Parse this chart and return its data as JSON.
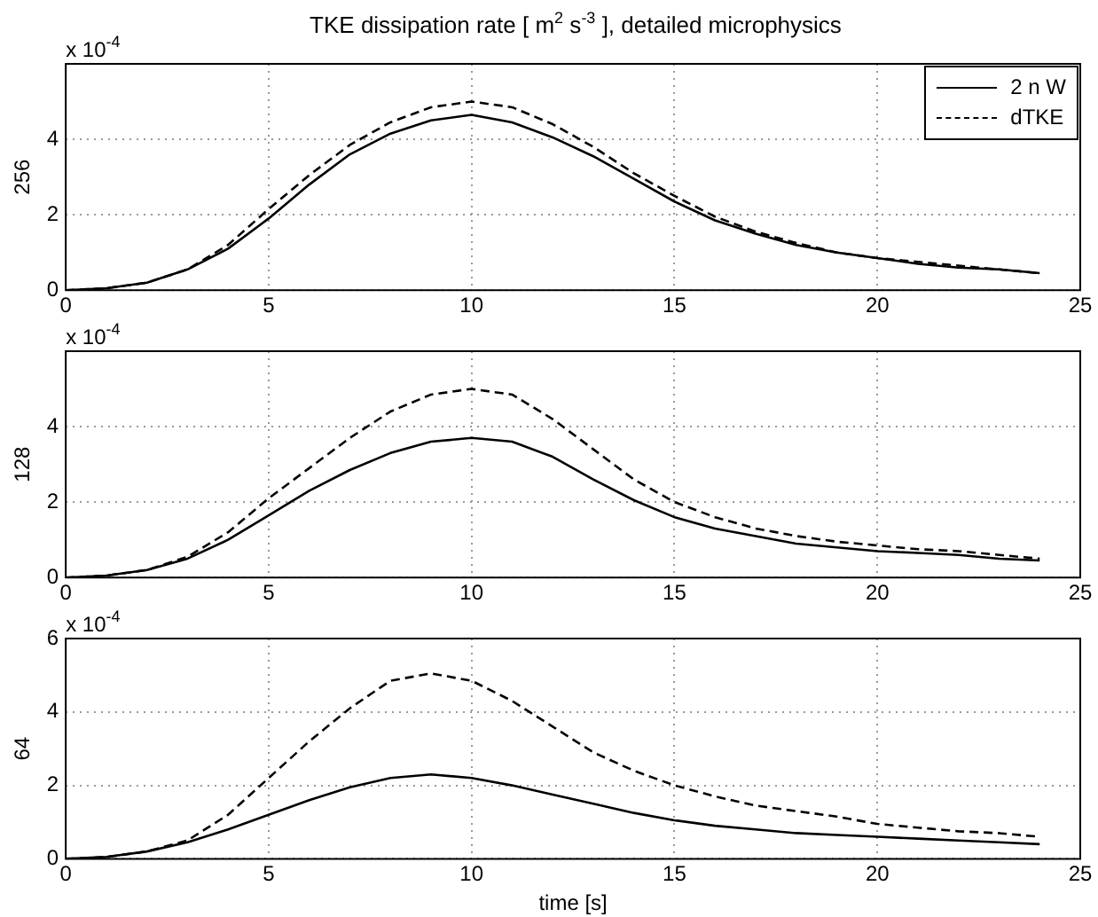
{
  "chart_data": [
    {
      "type": "line",
      "title": "TKE dissipation rate [ m$^{2}$ s$^{-3}$ ], detailed microphysics",
      "ylabel": "256",
      "annotations": [
        "x 10$^{-4}$"
      ],
      "legend": "top right",
      "grid": true,
      "x": [
        0,
        1,
        2,
        3,
        4,
        5,
        6,
        7,
        8,
        9,
        10,
        11,
        12,
        13,
        14,
        15,
        16,
        17,
        18,
        19,
        20,
        21,
        22,
        23,
        24
      ],
      "xlim": [
        0,
        25
      ],
      "xticks": [
        0,
        5,
        10,
        15,
        20,
        25
      ],
      "ylim": [
        0,
        6
      ],
      "yticks": [
        0,
        2,
        4
      ],
      "series": [
        {
          "name": "2 n W",
          "color": "#000000",
          "line_style": "solid",
          "values": [
            0,
            0.05,
            0.2,
            0.55,
            1.1,
            1.9,
            2.8,
            3.6,
            4.15,
            4.5,
            4.65,
            4.45,
            4.05,
            3.55,
            2.95,
            2.35,
            1.85,
            1.5,
            1.2,
            1,
            0.85,
            0.7,
            0.6,
            0.55,
            0.45
          ]
        },
        {
          "name": "dTKE",
          "color": "#000000",
          "line_style": "dashed",
          "values": [
            0,
            0.05,
            0.2,
            0.55,
            1.2,
            2.15,
            3.05,
            3.85,
            4.45,
            4.85,
            5,
            4.85,
            4.4,
            3.8,
            3.1,
            2.5,
            1.95,
            1.55,
            1.25,
            1,
            0.85,
            0.75,
            0.65,
            0.55,
            0.45
          ]
        }
      ]
    },
    {
      "type": "line",
      "ylabel": "128",
      "annotations": [
        "x 10$^{-4}$"
      ],
      "grid": true,
      "x": [
        0,
        1,
        2,
        3,
        4,
        5,
        6,
        7,
        8,
        9,
        10,
        11,
        12,
        13,
        14,
        15,
        16,
        17,
        18,
        19,
        20,
        21,
        22,
        23,
        24
      ],
      "xlim": [
        0,
        25
      ],
      "xticks": [
        0,
        5,
        10,
        15,
        20,
        25
      ],
      "ylim": [
        0,
        6
      ],
      "yticks": [
        0,
        2,
        4
      ],
      "series": [
        {
          "color": "#000000",
          "line_style": "solid",
          "values": [
            0,
            0.05,
            0.2,
            0.5,
            1,
            1.65,
            2.3,
            2.85,
            3.3,
            3.6,
            3.7,
            3.6,
            3.2,
            2.6,
            2.05,
            1.6,
            1.3,
            1.1,
            0.9,
            0.8,
            0.7,
            0.65,
            0.6,
            0.5,
            0.45
          ]
        },
        {
          "color": "#000000",
          "line_style": "dashed",
          "values": [
            0,
            0.05,
            0.2,
            0.55,
            1.2,
            2.1,
            2.9,
            3.7,
            4.4,
            4.85,
            5,
            4.85,
            4.2,
            3.4,
            2.6,
            2,
            1.6,
            1.3,
            1.1,
            0.95,
            0.85,
            0.75,
            0.7,
            0.6,
            0.5
          ]
        }
      ]
    },
    {
      "type": "line",
      "ylabel": "64",
      "xlabel": "time [s]",
      "annotations": [
        "x 10$^{-4}$"
      ],
      "grid": true,
      "x": [
        0,
        1,
        2,
        3,
        4,
        5,
        6,
        7,
        8,
        9,
        10,
        11,
        12,
        13,
        14,
        15,
        16,
        17,
        18,
        19,
        20,
        21,
        22,
        23,
        24
      ],
      "xlim": [
        0,
        25
      ],
      "xticks": [
        0,
        5,
        10,
        15,
        20,
        25
      ],
      "ylim": [
        0,
        6
      ],
      "yticks": [
        0,
        2,
        4,
        6
      ],
      "series": [
        {
          "color": "#000000",
          "line_style": "solid",
          "values": [
            0,
            0.05,
            0.2,
            0.45,
            0.8,
            1.2,
            1.6,
            1.95,
            2.2,
            2.3,
            2.2,
            2,
            1.75,
            1.5,
            1.25,
            1.05,
            0.9,
            0.8,
            0.7,
            0.65,
            0.6,
            0.55,
            0.5,
            0.45,
            0.4
          ]
        },
        {
          "color": "#000000",
          "line_style": "dashed",
          "values": [
            0,
            0.05,
            0.2,
            0.5,
            1.2,
            2.2,
            3.2,
            4.1,
            4.85,
            5.05,
            4.85,
            4.3,
            3.6,
            2.9,
            2.4,
            2,
            1.7,
            1.45,
            1.3,
            1.15,
            0.95,
            0.85,
            0.75,
            0.7,
            0.6
          ]
        }
      ]
    }
  ]
}
